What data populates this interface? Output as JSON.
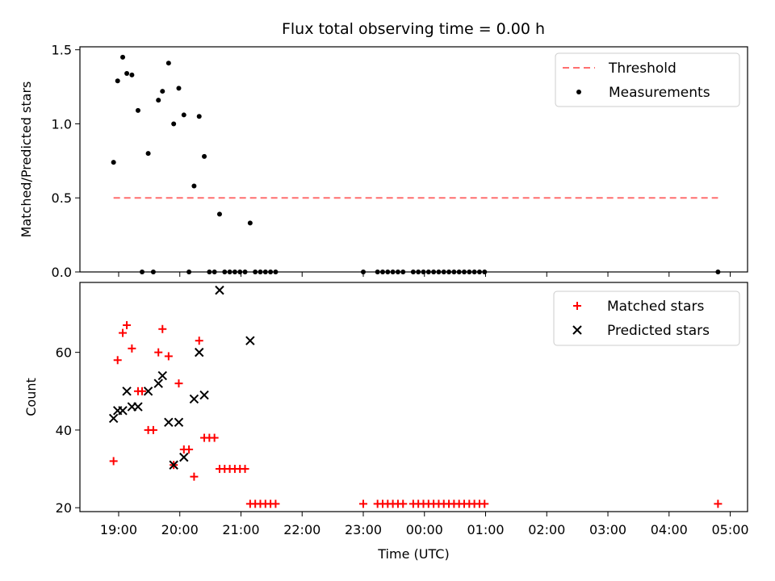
{
  "title": "Flux total observing time = 0.00 h",
  "chart_data": [
    {
      "type": "scatter",
      "ylabel": "Matched/Predicted stars",
      "xlabel": "",
      "xlim": [
        "18:22",
        "05:17"
      ],
      "ylim": [
        0,
        1.52
      ],
      "yticks": [
        "0.0",
        "0.5",
        "1.0",
        "1.5"
      ],
      "grid": false,
      "legend": "upper right",
      "threshold": {
        "name": "Threshold",
        "value": 0.5,
        "x_start": "18:55",
        "x_end": "04:48",
        "color": "#ff6f6f"
      },
      "series": [
        {
          "name": "Measurements",
          "color": "#000000",
          "marker": "dot",
          "points": [
            [
              "18:55",
              0.74
            ],
            [
              "18:59",
              1.29
            ],
            [
              "19:04",
              1.45
            ],
            [
              "19:08",
              1.34
            ],
            [
              "19:13",
              1.33
            ],
            [
              "19:19",
              1.09
            ],
            [
              "19:23",
              0.0
            ],
            [
              "19:29",
              0.8
            ],
            [
              "19:34",
              0.0
            ],
            [
              "19:39",
              1.16
            ],
            [
              "19:43",
              1.22
            ],
            [
              "19:49",
              1.41
            ],
            [
              "19:54",
              1.0
            ],
            [
              "19:59",
              1.24
            ],
            [
              "20:04",
              1.06
            ],
            [
              "20:09",
              0.0
            ],
            [
              "20:14",
              0.58
            ],
            [
              "20:19",
              1.05
            ],
            [
              "20:24",
              0.78
            ],
            [
              "20:29",
              0.0
            ],
            [
              "20:34",
              0.0
            ],
            [
              "20:39",
              0.39
            ],
            [
              "20:44",
              0.0
            ],
            [
              "20:49",
              0.0
            ],
            [
              "20:54",
              0.0
            ],
            [
              "20:59",
              0.0
            ],
            [
              "21:04",
              0.0
            ],
            [
              "21:09",
              0.33
            ],
            [
              "21:14",
              0.0
            ],
            [
              "21:19",
              0.0
            ],
            [
              "21:24",
              0.0
            ],
            [
              "21:29",
              0.0
            ],
            [
              "21:34",
              0.0
            ],
            [
              "23:00",
              0.0
            ],
            [
              "23:14",
              0.0
            ],
            [
              "23:19",
              0.0
            ],
            [
              "23:24",
              0.0
            ],
            [
              "23:29",
              0.0
            ],
            [
              "23:34",
              0.0
            ],
            [
              "23:39",
              0.0
            ],
            [
              "23:49",
              0.0
            ],
            [
              "23:54",
              0.0
            ],
            [
              "23:59",
              0.0
            ],
            [
              "00:04",
              0.0
            ],
            [
              "00:09",
              0.0
            ],
            [
              "00:14",
              0.0
            ],
            [
              "00:19",
              0.0
            ],
            [
              "00:24",
              0.0
            ],
            [
              "00:29",
              0.0
            ],
            [
              "00:34",
              0.0
            ],
            [
              "00:39",
              0.0
            ],
            [
              "00:44",
              0.0
            ],
            [
              "00:49",
              0.0
            ],
            [
              "00:54",
              0.0
            ],
            [
              "00:59",
              0.0
            ],
            [
              "04:48",
              0.0
            ]
          ]
        }
      ]
    },
    {
      "type": "scatter",
      "ylabel": "Count",
      "xlabel": "Time (UTC)",
      "xlim": [
        "18:22",
        "05:17"
      ],
      "ylim": [
        19,
        78
      ],
      "yticks": [
        "20",
        "40",
        "60"
      ],
      "xticks": [
        "19:00",
        "20:00",
        "21:00",
        "22:00",
        "23:00",
        "00:00",
        "01:00",
        "02:00",
        "03:00",
        "04:00",
        "05:00"
      ],
      "grid": false,
      "legend": "upper right",
      "series": [
        {
          "name": "Matched stars",
          "color": "#ff0000",
          "marker": "plus",
          "points": [
            [
              "18:55",
              32
            ],
            [
              "18:59",
              58
            ],
            [
              "19:04",
              65
            ],
            [
              "19:08",
              67
            ],
            [
              "19:13",
              61
            ],
            [
              "19:19",
              50
            ],
            [
              "19:23",
              50
            ],
            [
              "19:29",
              40
            ],
            [
              "19:34",
              40
            ],
            [
              "19:39",
              60
            ],
            [
              "19:43",
              66
            ],
            [
              "19:49",
              59
            ],
            [
              "19:54",
              31
            ],
            [
              "19:59",
              52
            ],
            [
              "20:04",
              35
            ],
            [
              "20:09",
              35
            ],
            [
              "20:14",
              28
            ],
            [
              "20:19",
              63
            ],
            [
              "20:24",
              38
            ],
            [
              "20:29",
              38
            ],
            [
              "20:34",
              38
            ],
            [
              "20:39",
              30
            ],
            [
              "20:44",
              30
            ],
            [
              "20:49",
              30
            ],
            [
              "20:54",
              30
            ],
            [
              "20:59",
              30
            ],
            [
              "21:04",
              30
            ],
            [
              "21:09",
              21
            ],
            [
              "21:14",
              21
            ],
            [
              "21:19",
              21
            ],
            [
              "21:24",
              21
            ],
            [
              "21:29",
              21
            ],
            [
              "21:34",
              21
            ],
            [
              "23:00",
              21
            ],
            [
              "23:14",
              21
            ],
            [
              "23:19",
              21
            ],
            [
              "23:24",
              21
            ],
            [
              "23:29",
              21
            ],
            [
              "23:34",
              21
            ],
            [
              "23:39",
              21
            ],
            [
              "23:49",
              21
            ],
            [
              "23:54",
              21
            ],
            [
              "23:59",
              21
            ],
            [
              "00:04",
              21
            ],
            [
              "00:09",
              21
            ],
            [
              "00:14",
              21
            ],
            [
              "00:19",
              21
            ],
            [
              "00:24",
              21
            ],
            [
              "00:29",
              21
            ],
            [
              "00:34",
              21
            ],
            [
              "00:39",
              21
            ],
            [
              "00:44",
              21
            ],
            [
              "00:49",
              21
            ],
            [
              "00:54",
              21
            ],
            [
              "00:59",
              21
            ],
            [
              "04:48",
              21
            ]
          ]
        },
        {
          "name": "Predicted stars",
          "color": "#000000",
          "marker": "x",
          "points": [
            [
              "18:55",
              43
            ],
            [
              "18:59",
              45
            ],
            [
              "19:04",
              45
            ],
            [
              "19:08",
              50
            ],
            [
              "19:13",
              46
            ],
            [
              "19:19",
              46
            ],
            [
              "19:29",
              50
            ],
            [
              "19:39",
              52
            ],
            [
              "19:43",
              54
            ],
            [
              "19:49",
              42
            ],
            [
              "19:54",
              31
            ],
            [
              "19:59",
              42
            ],
            [
              "20:04",
              33
            ],
            [
              "20:14",
              48
            ],
            [
              "20:19",
              60
            ],
            [
              "20:24",
              49
            ],
            [
              "20:39",
              76
            ],
            [
              "21:09",
              63
            ]
          ]
        }
      ]
    }
  ]
}
